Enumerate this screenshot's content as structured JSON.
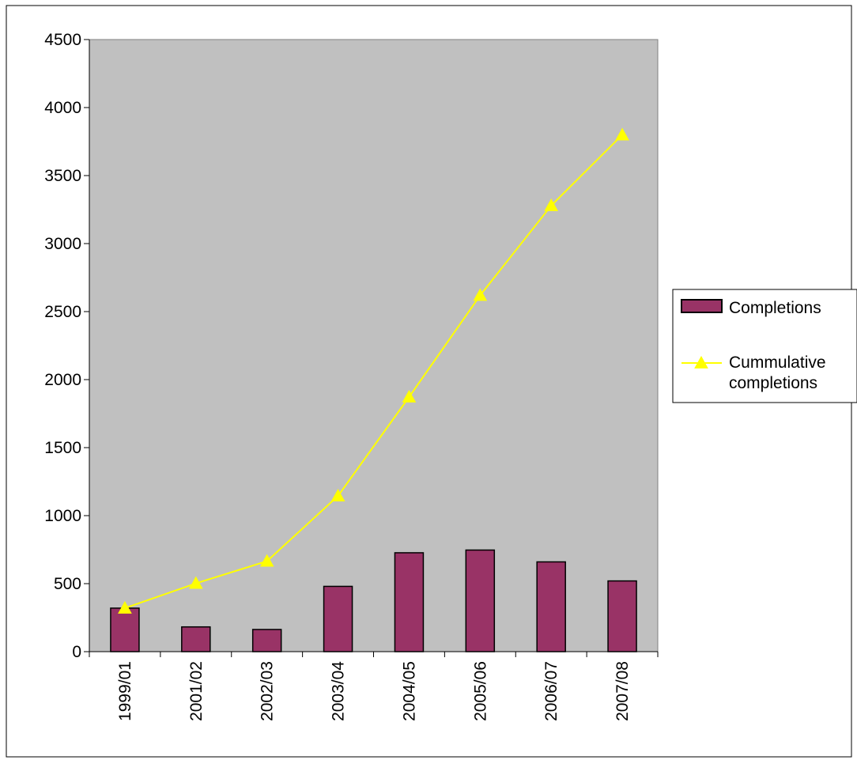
{
  "chart_data": {
    "type": "bar",
    "title": "",
    "xlabel": "",
    "ylabel": "",
    "categories": [
      "1999/01",
      "2001/02",
      "2002/03",
      "2003/04",
      "2004/05",
      "2005/06",
      "2006/07",
      "2007/08"
    ],
    "ylim": [
      0,
      4500
    ],
    "yticks": [
      "0",
      "500",
      "1000",
      "1500",
      "2000",
      "2500",
      "3000",
      "3500",
      "4000",
      "4500"
    ],
    "grid": false,
    "legend_position": "right",
    "series": [
      {
        "name": "Completions",
        "type": "bar",
        "color": "#993366",
        "values": [
          320,
          182,
          163,
          480,
          727,
          747,
          660,
          520
        ]
      },
      {
        "name": "Cummulative completions",
        "type": "line",
        "marker": "triangle",
        "color": "#ffff00",
        "values": [
          320,
          502,
          665,
          1145,
          1872,
          2619,
          3279,
          3799
        ]
      }
    ],
    "colors": {
      "plot_background": "#c0c0c0",
      "bar_fill": "#993366",
      "line": "#ffff00"
    }
  },
  "legend": {
    "items": [
      {
        "label_lines": [
          "Completions"
        ]
      },
      {
        "label_lines": [
          "Cummulative",
          "completions"
        ]
      }
    ]
  }
}
